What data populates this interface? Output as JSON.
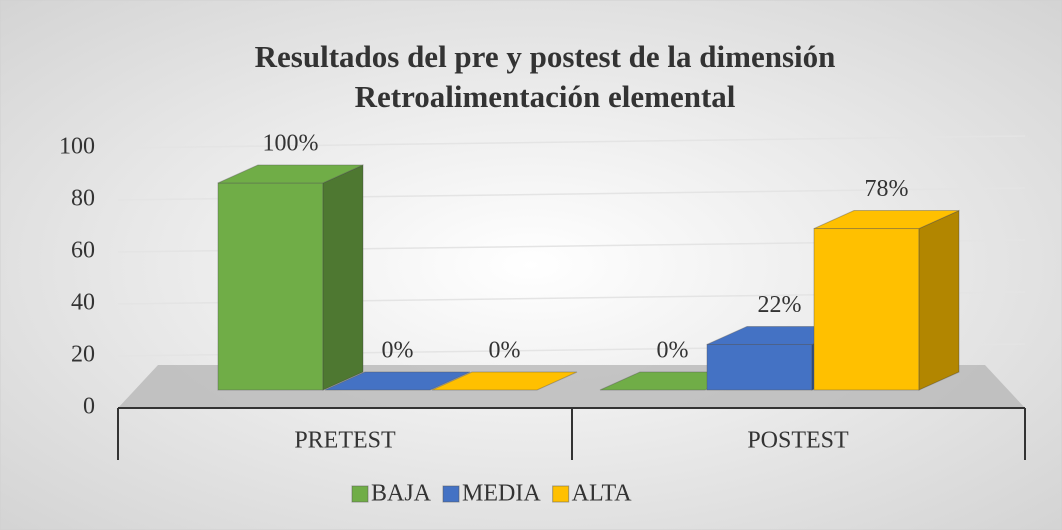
{
  "chart_data": {
    "type": "bar3d",
    "title": "Resultados del pre y postest de la dimensión Retroalimentación elemental",
    "categories": [
      "PRETEST",
      "POSTEST"
    ],
    "series": [
      {
        "name": "BAJA",
        "color": "#70ad47",
        "values": [
          100,
          0
        ],
        "value_labels": [
          "100%",
          "0%"
        ]
      },
      {
        "name": "MEDIA",
        "color": "#4472c4",
        "values": [
          0,
          22
        ],
        "value_labels": [
          "0%",
          "22%"
        ]
      },
      {
        "name": "ALTA",
        "color": "#ffc000",
        "values": [
          0,
          78
        ],
        "value_labels": [
          "0%",
          "78%"
        ]
      }
    ],
    "ylim": [
      0,
      100
    ],
    "yticks": [
      0,
      20,
      40,
      60,
      80,
      100
    ],
    "grid": true,
    "legend": "bottom"
  }
}
